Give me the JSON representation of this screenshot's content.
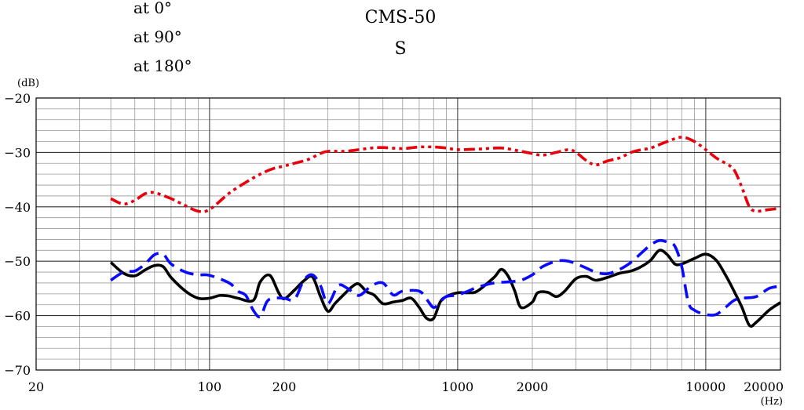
{
  "chart_data": {
    "type": "line",
    "title": "CMS-50",
    "subtitle": "S",
    "ylabel": "(dB)",
    "xlabel": "(Hz)",
    "xscale": "log",
    "xlim": [
      20,
      20000
    ],
    "ylim": [
      -70,
      -20
    ],
    "y_ticks": [
      -20,
      -30,
      -40,
      -50,
      -60,
      -70
    ],
    "x_ticks": [
      20,
      100,
      200,
      1000,
      2000,
      10000,
      20000
    ],
    "grid": true,
    "legend_position": "top-left",
    "series": [
      {
        "name": "at 0°",
        "color": "#000000",
        "style": "solid",
        "points": [
          [
            40,
            -50.2
          ],
          [
            45,
            -52.2
          ],
          [
            50,
            -52.7
          ],
          [
            55,
            -51.6
          ],
          [
            60,
            -50.8
          ],
          [
            65,
            -51.0
          ],
          [
            70,
            -53.0
          ],
          [
            80,
            -55.5
          ],
          [
            90,
            -56.8
          ],
          [
            100,
            -56.8
          ],
          [
            110,
            -56.3
          ],
          [
            120,
            -56.4
          ],
          [
            130,
            -56.8
          ],
          [
            150,
            -57.2
          ],
          [
            160,
            -53.8
          ],
          [
            175,
            -52.6
          ],
          [
            190,
            -55.8
          ],
          [
            200,
            -56.9
          ],
          [
            220,
            -55.3
          ],
          [
            240,
            -53.6
          ],
          [
            260,
            -52.9
          ],
          [
            280,
            -56.5
          ],
          [
            300,
            -59.2
          ],
          [
            320,
            -57.8
          ],
          [
            350,
            -56.0
          ],
          [
            380,
            -54.5
          ],
          [
            400,
            -54.2
          ],
          [
            430,
            -55.6
          ],
          [
            460,
            -56.2
          ],
          [
            500,
            -57.8
          ],
          [
            550,
            -57.5
          ],
          [
            600,
            -57.2
          ],
          [
            650,
            -56.8
          ],
          [
            700,
            -58.5
          ],
          [
            750,
            -60.5
          ],
          [
            800,
            -60.5
          ],
          [
            850,
            -57.5
          ],
          [
            900,
            -56.5
          ],
          [
            1000,
            -55.8
          ],
          [
            1100,
            -55.8
          ],
          [
            1200,
            -55.5
          ],
          [
            1400,
            -53.0
          ],
          [
            1500,
            -51.5
          ],
          [
            1600,
            -52.8
          ],
          [
            1700,
            -55.5
          ],
          [
            1800,
            -58.5
          ],
          [
            2000,
            -57.5
          ],
          [
            2100,
            -55.8
          ],
          [
            2300,
            -55.7
          ],
          [
            2500,
            -56.5
          ],
          [
            2700,
            -55.5
          ],
          [
            3000,
            -53.2
          ],
          [
            3300,
            -52.8
          ],
          [
            3600,
            -53.5
          ],
          [
            4000,
            -53.0
          ],
          [
            4500,
            -52.2
          ],
          [
            5000,
            -51.8
          ],
          [
            5500,
            -51.0
          ],
          [
            6000,
            -49.8
          ],
          [
            6500,
            -48.0
          ],
          [
            7000,
            -48.8
          ],
          [
            7500,
            -50.5
          ],
          [
            8000,
            -50.5
          ],
          [
            9000,
            -49.5
          ],
          [
            10000,
            -48.7
          ],
          [
            11000,
            -49.8
          ],
          [
            12000,
            -52.5
          ],
          [
            13000,
            -55.5
          ],
          [
            14000,
            -58.5
          ],
          [
            15000,
            -61.8
          ],
          [
            16000,
            -61.2
          ],
          [
            18000,
            -59.0
          ],
          [
            20000,
            -57.6
          ]
        ]
      },
      {
        "name": "at 90°",
        "color": "#e8000b",
        "style": "dash-dot-dot",
        "points": [
          [
            40,
            -38.5
          ],
          [
            45,
            -39.5
          ],
          [
            50,
            -38.8
          ],
          [
            55,
            -37.6
          ],
          [
            60,
            -37.4
          ],
          [
            70,
            -38.5
          ],
          [
            80,
            -39.8
          ],
          [
            90,
            -40.8
          ],
          [
            100,
            -40.5
          ],
          [
            120,
            -37.5
          ],
          [
            140,
            -35.5
          ],
          [
            160,
            -34.0
          ],
          [
            180,
            -33.0
          ],
          [
            200,
            -32.5
          ],
          [
            220,
            -32.0
          ],
          [
            250,
            -31.3
          ],
          [
            280,
            -30.2
          ],
          [
            300,
            -29.8
          ],
          [
            350,
            -29.8
          ],
          [
            400,
            -29.5
          ],
          [
            450,
            -29.2
          ],
          [
            500,
            -29.1
          ],
          [
            600,
            -29.3
          ],
          [
            700,
            -29.0
          ],
          [
            800,
            -29.0
          ],
          [
            900,
            -29.2
          ],
          [
            1000,
            -29.5
          ],
          [
            1200,
            -29.4
          ],
          [
            1500,
            -29.2
          ],
          [
            1800,
            -29.8
          ],
          [
            2000,
            -30.2
          ],
          [
            2200,
            -30.5
          ],
          [
            2500,
            -30.0
          ],
          [
            2800,
            -29.5
          ],
          [
            3000,
            -30.0
          ],
          [
            3300,
            -31.5
          ],
          [
            3600,
            -32.3
          ],
          [
            4000,
            -31.6
          ],
          [
            4500,
            -31.0
          ],
          [
            5000,
            -30.0
          ],
          [
            5500,
            -29.5
          ],
          [
            6000,
            -29.2
          ],
          [
            7000,
            -28.0
          ],
          [
            8000,
            -27.2
          ],
          [
            9000,
            -28.0
          ],
          [
            10000,
            -29.5
          ],
          [
            11000,
            -31.0
          ],
          [
            12000,
            -32.0
          ],
          [
            13000,
            -33.2
          ],
          [
            14000,
            -36.5
          ],
          [
            15000,
            -40.0
          ],
          [
            16000,
            -40.8
          ],
          [
            18000,
            -40.5
          ],
          [
            20000,
            -40.3
          ]
        ]
      },
      {
        "name": "at 180°",
        "color": "#0a0aff",
        "style": "dashed",
        "points": [
          [
            40,
            -53.5
          ],
          [
            45,
            -52.0
          ],
          [
            50,
            -51.8
          ],
          [
            55,
            -50.5
          ],
          [
            60,
            -48.8
          ],
          [
            65,
            -48.7
          ],
          [
            70,
            -50.5
          ],
          [
            80,
            -52.0
          ],
          [
            90,
            -52.5
          ],
          [
            100,
            -52.6
          ],
          [
            120,
            -54.0
          ],
          [
            130,
            -55.5
          ],
          [
            140,
            -56.3
          ],
          [
            150,
            -59.0
          ],
          [
            160,
            -60.2
          ],
          [
            170,
            -57.5
          ],
          [
            180,
            -56.8
          ],
          [
            200,
            -56.8
          ],
          [
            220,
            -57.0
          ],
          [
            240,
            -53.5
          ],
          [
            260,
            -52.5
          ],
          [
            280,
            -54.5
          ],
          [
            300,
            -57.8
          ],
          [
            330,
            -54.5
          ],
          [
            360,
            -55.0
          ],
          [
            400,
            -56.3
          ],
          [
            450,
            -54.5
          ],
          [
            500,
            -54.0
          ],
          [
            550,
            -56.2
          ],
          [
            600,
            -55.5
          ],
          [
            700,
            -55.5
          ],
          [
            750,
            -57.0
          ],
          [
            800,
            -58.5
          ],
          [
            850,
            -57.5
          ],
          [
            900,
            -56.5
          ],
          [
            1000,
            -56.2
          ],
          [
            1100,
            -55.5
          ],
          [
            1200,
            -54.8
          ],
          [
            1400,
            -54.0
          ],
          [
            1600,
            -53.8
          ],
          [
            1800,
            -53.5
          ],
          [
            2000,
            -52.5
          ],
          [
            2200,
            -51.0
          ],
          [
            2500,
            -50.0
          ],
          [
            2800,
            -50.0
          ],
          [
            3200,
            -51.0
          ],
          [
            3600,
            -52.0
          ],
          [
            4000,
            -52.3
          ],
          [
            4500,
            -51.5
          ],
          [
            5000,
            -50.2
          ],
          [
            5500,
            -48.5
          ],
          [
            6000,
            -47.0
          ],
          [
            6500,
            -46.2
          ],
          [
            7000,
            -46.5
          ],
          [
            7500,
            -47.2
          ],
          [
            8000,
            -51.0
          ],
          [
            8500,
            -57.5
          ],
          [
            9000,
            -59.0
          ],
          [
            10000,
            -59.8
          ],
          [
            11000,
            -59.8
          ],
          [
            12000,
            -58.5
          ],
          [
            13000,
            -57.2
          ],
          [
            14000,
            -56.8
          ],
          [
            16000,
            -56.5
          ],
          [
            18000,
            -55.0
          ],
          [
            20000,
            -54.6
          ]
        ]
      }
    ]
  }
}
